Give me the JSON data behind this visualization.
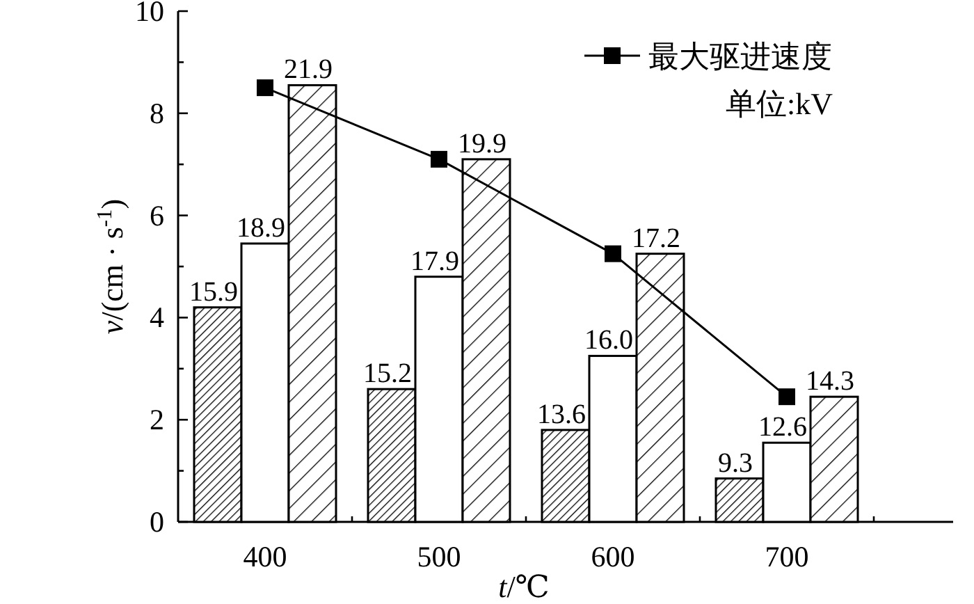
{
  "chart_data": {
    "type": "bar",
    "xlabel": "*t*/℃",
    "ylabel": "*v*/(cm · s$^{-1}$)",
    "categories": [
      "400",
      "500",
      "600",
      "700"
    ],
    "series": [
      {
        "color": "#000000",
        "values": [
          4.2,
          2.6,
          1.8,
          0.85
        ]
      },
      {
        "color": "#ffffff",
        "values": [
          5.45,
          4.8,
          3.25,
          1.55
        ]
      },
      {
        "color": "#000000",
        "values": [
          8.55,
          7.1,
          5.25,
          2.45
        ]
      },
      {
        "type": "line",
        "name": "最大驱进速度",
        "color": "#000000",
        "marker": "square",
        "values": [
          8.5,
          7.1,
          5.25,
          2.45
        ]
      }
    ],
    "ylim": [
      0,
      10
    ],
    "yticks": [
      0,
      {
        "value": 1,
        "label": null
      },
      2,
      {
        "value": 3,
        "label": null
      },
      4,
      {
        "value": 5,
        "label": null
      },
      6,
      {
        "value": 7,
        "label": null
      },
      8,
      {
        "value": 9,
        "label": null
      },
      10
    ],
    "annotations": [
      "单位:kV",
      "15.9",
      {
        "text": "18.9",
        "x": "400",
        "y": 5.45
      },
      {
        "text": "21.9",
        "x": "400",
        "y": 8.55
      },
      "15.2",
      {
        "text": "17.9",
        "x": "500",
        "y": 4.8
      },
      {
        "text": "19.9",
        "x": "500",
        "y": 7.1
      },
      "13.6",
      {
        "text": "16.0",
        "x": "600",
        "y": 3.25
      },
      {
        "text": "17.2",
        "x": "600",
        "y": 5.25
      },
      "9.3",
      {
        "text": "12.6",
        "x": "700",
        "y": 1.55
      },
      {
        "text": "14.3",
        "x": "700",
        "y": 2.45
      }
    ],
    "legend": "top right",
    "grid": false
  }
}
